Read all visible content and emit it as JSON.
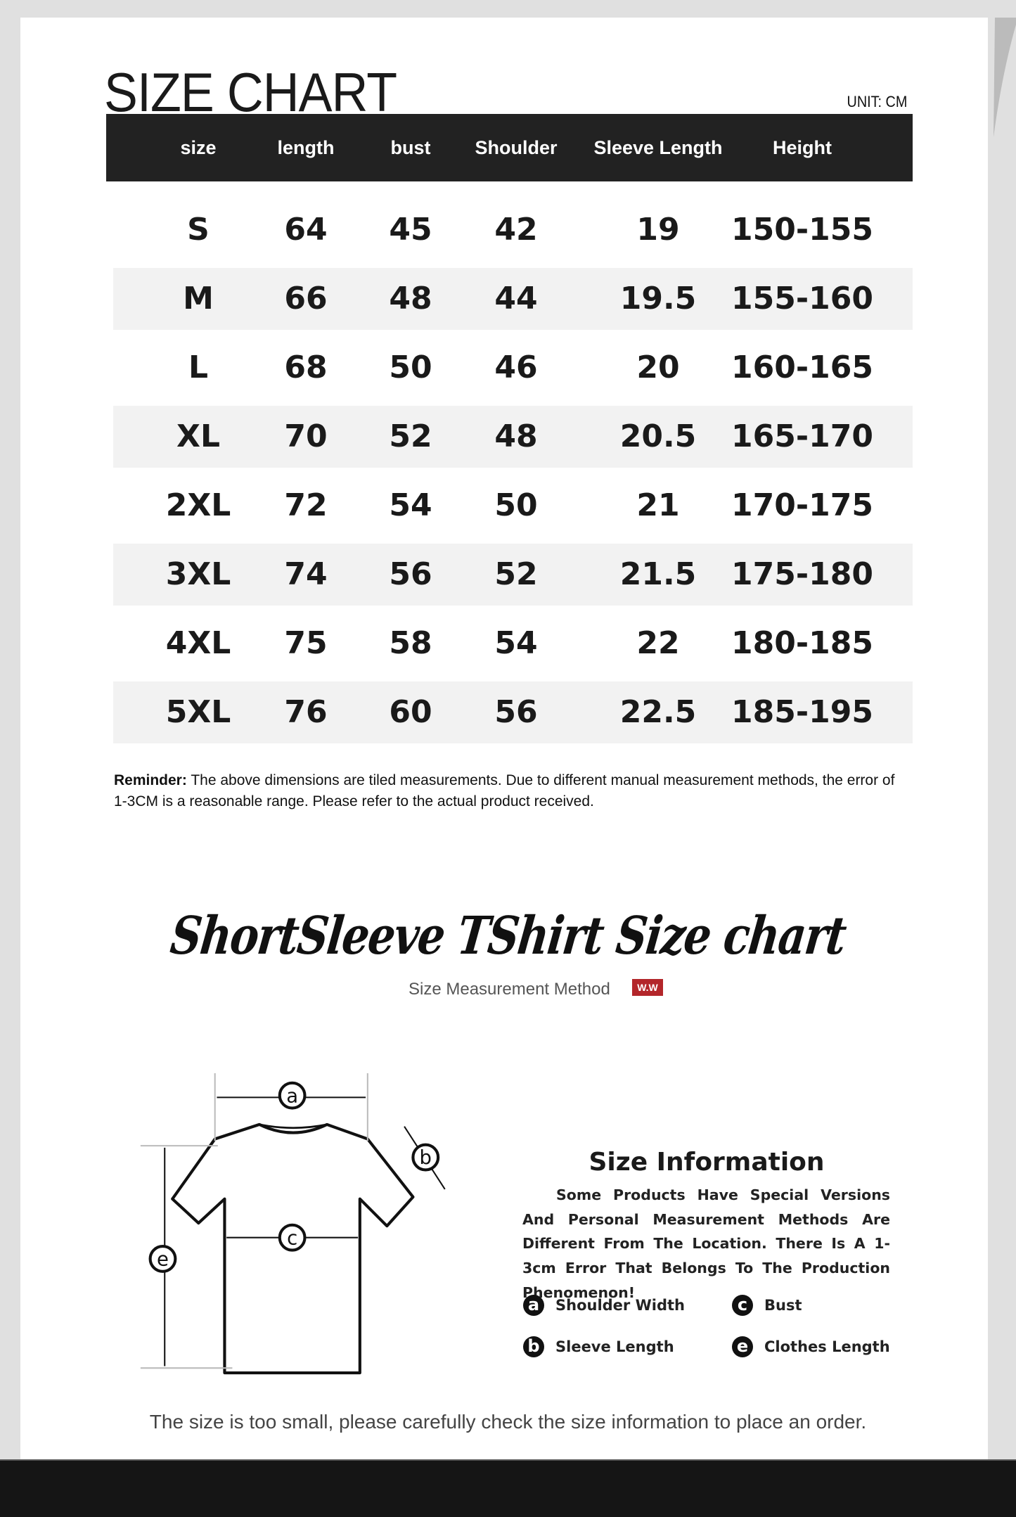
{
  "title": "SIZE CHART",
  "unit": "UNIT: CM",
  "table": {
    "headers": [
      "size",
      "length",
      "bust",
      "Shoulder",
      "Sleeve Length",
      "Height"
    ],
    "rows": [
      [
        "S",
        "64",
        "45",
        "42",
        "19",
        "150-155"
      ],
      [
        "M",
        "66",
        "48",
        "44",
        "19.5",
        "155-160"
      ],
      [
        "L",
        "68",
        "50",
        "46",
        "20",
        "160-165"
      ],
      [
        "XL",
        "70",
        "52",
        "48",
        "20.5",
        "165-170"
      ],
      [
        "2XL",
        "72",
        "54",
        "50",
        "21",
        "170-175"
      ],
      [
        "3XL",
        "74",
        "56",
        "52",
        "21.5",
        "175-180"
      ],
      [
        "4XL",
        "75",
        "58",
        "54",
        "22",
        "180-185"
      ],
      [
        "5XL",
        "76",
        "60",
        "56",
        "22.5",
        "185-195"
      ]
    ]
  },
  "reminder": {
    "label": "Reminder:",
    "text": " The above dimensions are tiled measurements. Due to different manual measurement methods, the error of 1-3CM is a reasonable range. Please refer to the actual product received."
  },
  "section_title": "ShortSleeve TShirt Size chart",
  "method_label": "Size Measurement Method",
  "logo_text": "W.W",
  "diagram_labels": [
    "a",
    "b",
    "c",
    "e"
  ],
  "size_info": {
    "title": "Size Information",
    "text": "Some Products Have Special Versions And Personal Measurement Methods Are Different From The Location. There Is A 1-3cm Error That Belongs To The Production Phenomenon!",
    "legend": [
      {
        "letter": "a",
        "label": "Shoulder Width"
      },
      {
        "letter": "c",
        "label": "Bust"
      },
      {
        "letter": "b",
        "label": "Sleeve Length"
      },
      {
        "letter": "e",
        "label": "Clothes Length"
      }
    ]
  },
  "footer": "The size is too small, please carefully check the size information to place an order.",
  "colors": {
    "header_bg": "#222222",
    "stripe": "#f2f2f2",
    "logo": "#b3262a",
    "bottom_bar": "#151515"
  }
}
